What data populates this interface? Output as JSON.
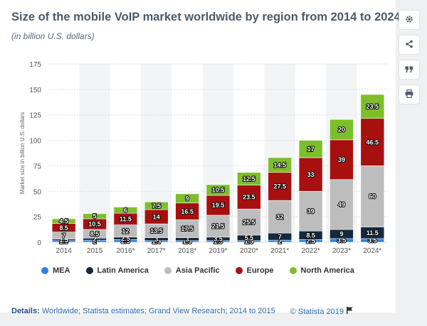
{
  "header": {
    "title": "Size of the mobile VoIP market worldwide by region from 2014 to 2024",
    "subtitle": "(in billion U.S. dollars)"
  },
  "chart_data": {
    "type": "bar",
    "stacked": true,
    "categories": [
      "2014",
      "2015",
      "2016*",
      "2017*",
      "2018*",
      "2019*",
      "2020*",
      "2021*",
      "2022*",
      "2023*",
      "2024*"
    ],
    "ylabel": "Market size in billion U.S. dollars",
    "xlabel": "",
    "ylim": [
      0,
      175
    ],
    "yticks": [
      0,
      25,
      50,
      75,
      100,
      125,
      150,
      175
    ],
    "grid": true,
    "legend_position": "bottom",
    "series": [
      {
        "name": "MEA",
        "color": "#3380d6",
        "values": [
          1.5,
          2,
          2.5,
          1.5,
          1.5,
          1.5,
          1.5,
          2,
          2.5,
          3.5,
          3.5
        ],
        "labels": [
          "1.5",
          "2",
          "2.5",
          "1.5",
          "1.5",
          "1.5",
          "1.5",
          "2",
          "2.5",
          "3.5",
          "3.5"
        ]
      },
      {
        "name": "Latin America",
        "color": "#142840",
        "values": [
          1.5,
          2,
          2.5,
          3,
          3,
          3.5,
          5.5,
          7,
          8.5,
          9,
          11.5
        ],
        "labels": [
          "1.5",
          "2",
          "2.5",
          "3",
          "3",
          "3.5",
          "5.5",
          "7",
          "8.5",
          "9",
          "11.5"
        ]
      },
      {
        "name": "Asia Pacific",
        "color": "#bdbdbd",
        "values": [
          7,
          8.5,
          12,
          13.5,
          17.5,
          21.5,
          25.5,
          32,
          39,
          49,
          60
        ],
        "labels": [
          "7",
          "8.5",
          "12",
          "13.5",
          "17.5",
          "21.5",
          "25.5",
          "32",
          "39",
          "49",
          "60"
        ]
      },
      {
        "name": "Europe",
        "color": "#a8100f",
        "values": [
          8.5,
          10.5,
          11.5,
          14,
          16.5,
          19.5,
          23.5,
          27.5,
          33,
          39,
          46.5
        ],
        "labels": [
          "8.5",
          "10.5",
          "11.5",
          "14",
          "16.5",
          "19.5",
          "23.5",
          "27.5",
          "33",
          "39",
          "46.5"
        ]
      },
      {
        "name": "North America",
        "color": "#7cbf2a",
        "values": [
          4.5,
          5,
          6,
          7.5,
          9,
          10.5,
          12.5,
          14.5,
          17,
          20,
          23.5
        ],
        "labels": [
          "4.5",
          "5",
          "6",
          "7.5",
          "9",
          "10.5",
          "12.5",
          "14.5",
          "17",
          "20",
          "23.5"
        ]
      }
    ]
  },
  "footer": {
    "details_label": "Details:",
    "details_text": "Worldwide; Statista estimates; Grand View Research; 2014 to 2015",
    "copyright": "© Statista 2019"
  },
  "icons": {
    "settings": "gear-icon",
    "share": "share-icon",
    "cite": "quote-icon",
    "print": "print-icon",
    "flag": "flag-icon"
  }
}
